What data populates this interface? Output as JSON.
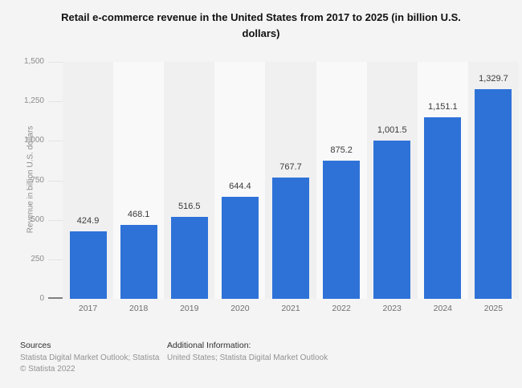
{
  "title": "Retail e-commerce revenue in the United States from 2017 to 2025 (in billion U.S.\ndollars)",
  "chart_data": {
    "type": "bar",
    "title": "Retail e-commerce revenue in the United States from 2017 to 2025 (in billion U.S. dollars)",
    "categories": [
      "2017",
      "2018",
      "2019",
      "2020",
      "2021",
      "2022",
      "2023",
      "2024",
      "2025"
    ],
    "values": [
      424.9,
      468.1,
      516.5,
      644.4,
      767.7,
      875.2,
      1001.5,
      1151.1,
      1329.7
    ],
    "value_labels": [
      "424.9",
      "468.1",
      "516.5",
      "644.4",
      "767.7",
      "875.2",
      "1,001.5",
      "1,151.1",
      "1,329.7"
    ],
    "xlabel": "",
    "ylabel": "Revenue in billion U.S. dollars",
    "ylim": [
      0,
      1500
    ],
    "y_ticks": [
      {
        "label": "1,500",
        "value": 1500
      },
      {
        "label": "1,250",
        "value": 1250
      },
      {
        "label": "1,000",
        "value": 1000
      },
      {
        "label": "750",
        "value": 750
      },
      {
        "label": "500",
        "value": 500
      },
      {
        "label": "250",
        "value": 250
      },
      {
        "label": "0",
        "value": 0
      }
    ],
    "grid": true,
    "legend": "none",
    "bar_color": "#2e72d8"
  },
  "footer": {
    "sources_title": "Sources",
    "sources_text": "Statista Digital Market Outlook; Statista",
    "copyright": "© Statista 2022",
    "additional_title": "Additional Information:",
    "additional_text": "United States; Statista Digital Market Outlook"
  }
}
